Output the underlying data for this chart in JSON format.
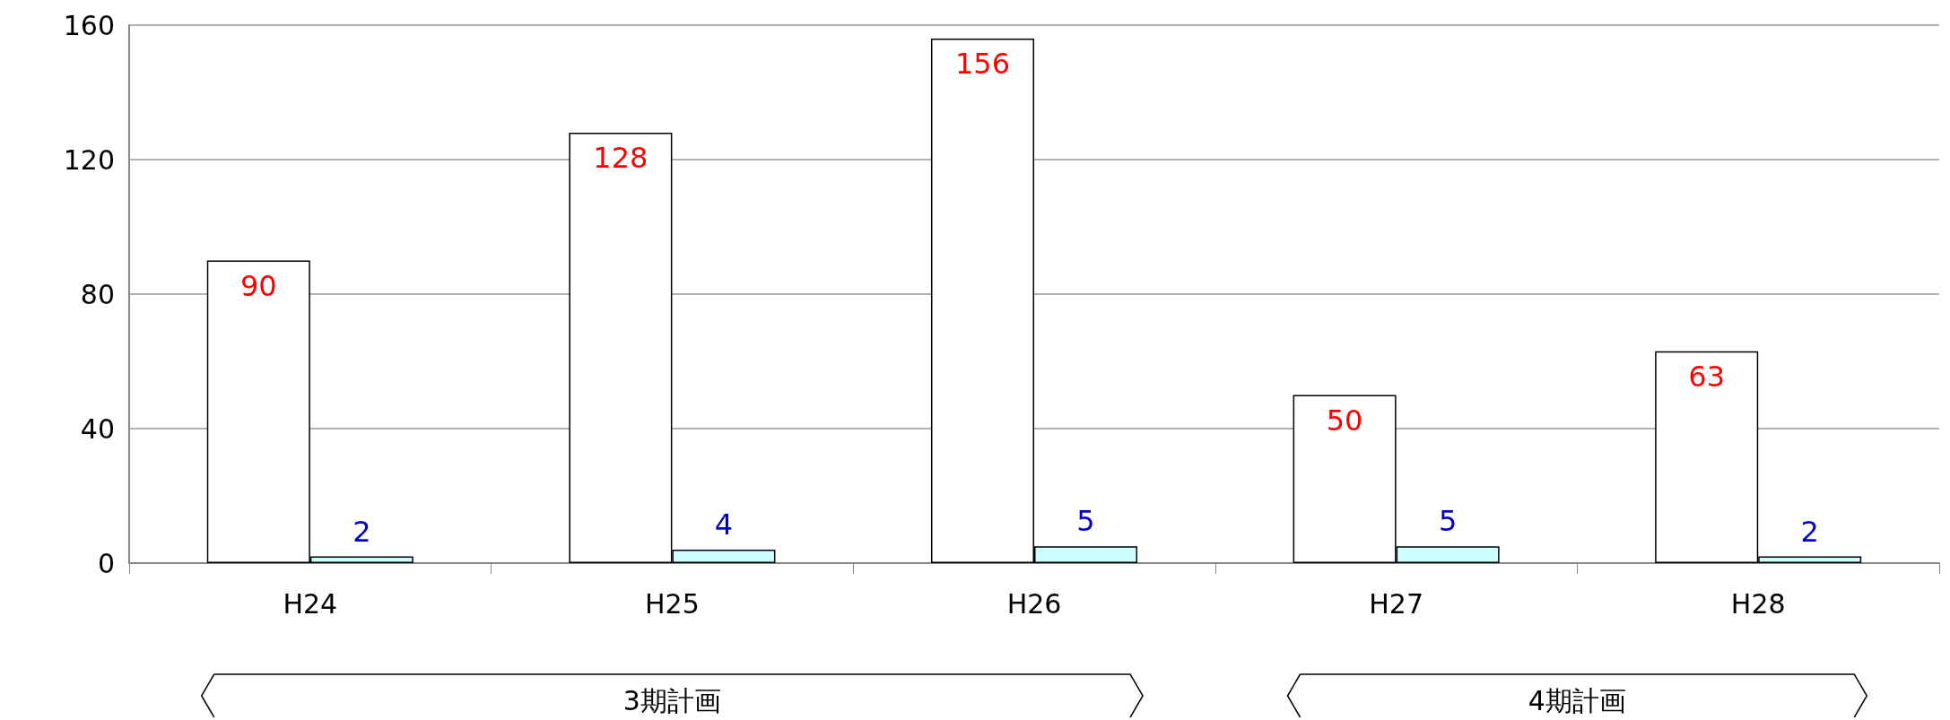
{
  "chart_data": {
    "type": "bar",
    "categories": [
      "H24",
      "H25",
      "H26",
      "H27",
      "H28"
    ],
    "series": [
      {
        "color": "#ffffff",
        "values": [
          90,
          128,
          156,
          50,
          63
        ]
      },
      {
        "color": "#ccffff",
        "values": [
          2,
          4,
          5,
          5,
          2
        ]
      }
    ],
    "ylim": [
      0,
      160
    ],
    "yticks": [
      0,
      40,
      80,
      120,
      160
    ],
    "grid": "y",
    "data_labels": true,
    "annotations": [
      "3期計画",
      "4期計画"
    ]
  }
}
